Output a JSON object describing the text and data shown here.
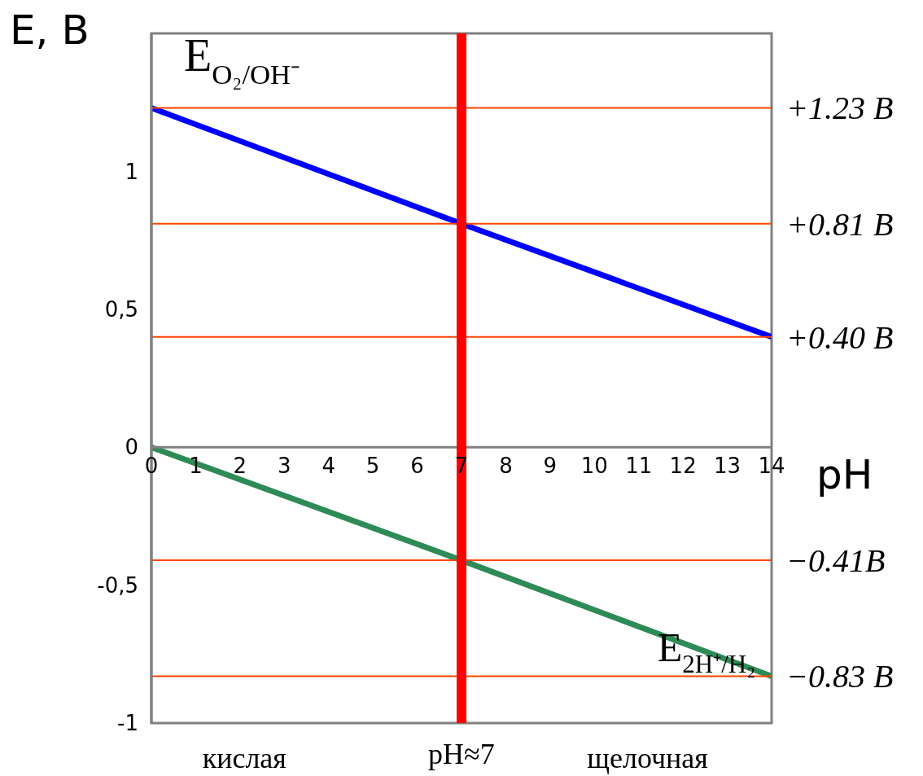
{
  "chart_data": {
    "type": "line",
    "xlabel": "pH",
    "ylabel": "E, B",
    "xlim": [
      0,
      14
    ],
    "xticks": [
      0,
      1,
      2,
      3,
      4,
      5,
      6,
      7,
      8,
      9,
      10,
      11,
      12,
      13,
      14
    ],
    "ylim": [
      -1,
      1.5
    ],
    "yticks": [
      -1,
      {
        "value": -0.5,
        "label": "-0,5"
      },
      0,
      {
        "value": 0.5,
        "label": "0,5"
      },
      1
    ],
    "grid": false,
    "marker": "none",
    "line_style": "solid",
    "series": [
      {
        "name": "E$_{O₂/OH⁻}$",
        "color": "#0000ff",
        "x": [
          0,
          7,
          14
        ],
        "values": [
          1.23,
          0.81,
          0.4
        ]
      },
      {
        "name": "E$_{2H⁺/H₂}$",
        "color": "#2e8b57",
        "x": [
          0,
          7,
          14
        ],
        "values": [
          0,
          -0.41,
          -0.83
        ]
      }
    ],
    "ref_lines": [
      {
        "axis": "y",
        "value": 1.23,
        "label": "+1.23 B",
        "color": "#ff4500"
      },
      {
        "axis": "y",
        "value": 0.81,
        "label": "+0.81 B",
        "color": "#ff4500"
      },
      {
        "axis": "y",
        "value": 0.4,
        "label": "+0.40 B",
        "color": "#ff4500"
      },
      {
        "axis": "y",
        "value": -0.41,
        "label": "−0.41B",
        "color": "#ff4500"
      },
      {
        "axis": "y",
        "value": -0.83,
        "label": "−0.83 B",
        "color": "#ff4500"
      },
      {
        "axis": "x",
        "value": 7,
        "label": "pH≈7",
        "color": "#ff0000"
      }
    ],
    "annotations": [
      "кислая",
      "щелочная"
    ]
  }
}
